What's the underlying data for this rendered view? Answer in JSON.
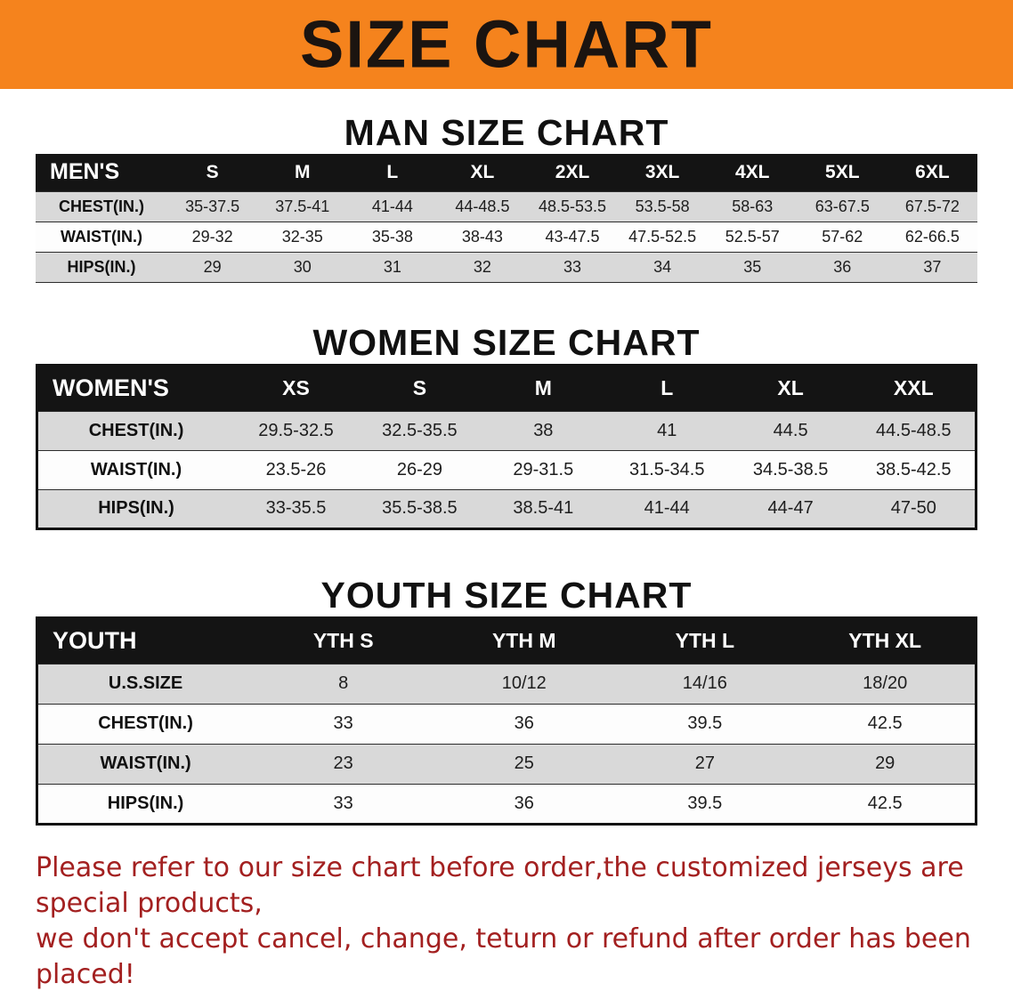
{
  "banner": {
    "title": "SIZE CHART"
  },
  "sections": {
    "men": {
      "heading": "MAN SIZE CHART",
      "table": {
        "header": [
          "MEN'S",
          "S",
          "M",
          "L",
          "XL",
          "2XL",
          "3XL",
          "4XL",
          "5XL",
          "6XL"
        ],
        "rows": [
          [
            "CHEST(IN.)",
            "35-37.5",
            "37.5-41",
            "41-44",
            "44-48.5",
            "48.5-53.5",
            "53.5-58",
            "58-63",
            "63-67.5",
            "67.5-72"
          ],
          [
            "WAIST(IN.)",
            "29-32",
            "32-35",
            "35-38",
            "38-43",
            "43-47.5",
            "47.5-52.5",
            "52.5-57",
            "57-62",
            "62-66.5"
          ],
          [
            "HIPS(IN.)",
            "29",
            "30",
            "31",
            "32",
            "33",
            "34",
            "35",
            "36",
            "37"
          ]
        ]
      }
    },
    "women": {
      "heading": "WOMEN SIZE CHART",
      "table": {
        "header": [
          "WOMEN'S",
          "XS",
          "S",
          "M",
          "L",
          "XL",
          "XXL"
        ],
        "rows": [
          [
            "CHEST(IN.)",
            "29.5-32.5",
            "32.5-35.5",
            "38",
            "41",
            "44.5",
            "44.5-48.5"
          ],
          [
            "WAIST(IN.)",
            "23.5-26",
            "26-29",
            "29-31.5",
            "31.5-34.5",
            "34.5-38.5",
            "38.5-42.5"
          ],
          [
            "HIPS(IN.)",
            "33-35.5",
            "35.5-38.5",
            "38.5-41",
            "41-44",
            "44-47",
            "47-50"
          ]
        ]
      }
    },
    "youth": {
      "heading": "YOUTH SIZE CHART",
      "table": {
        "header": [
          "YOUTH",
          "YTH S",
          "YTH M",
          "YTH L",
          "YTH XL"
        ],
        "rows": [
          [
            "U.S.SIZE",
            "8",
            "10/12",
            "14/16",
            "18/20"
          ],
          [
            "CHEST(IN.)",
            "33",
            "36",
            "39.5",
            "42.5"
          ],
          [
            "WAIST(IN.)",
            "23",
            "25",
            "27",
            "29"
          ],
          [
            "HIPS(IN.)",
            "33",
            "36",
            "39.5",
            "42.5"
          ]
        ]
      }
    }
  },
  "footer": {
    "line1": "Please refer to our size chart before order,the customized jerseys are special products,",
    "line2": "we don't accept cancel, change, teturn or refund after order has been placed!"
  },
  "colors": {
    "banner_bg": "#F5831D",
    "table_header_bg": "#141414",
    "table_header_text": "#FFFFFF",
    "row_alt_bg": "#D9D9D9",
    "row_bg": "#FDFDFD",
    "footer_text": "#A32020",
    "title_text": "#1B1410"
  }
}
